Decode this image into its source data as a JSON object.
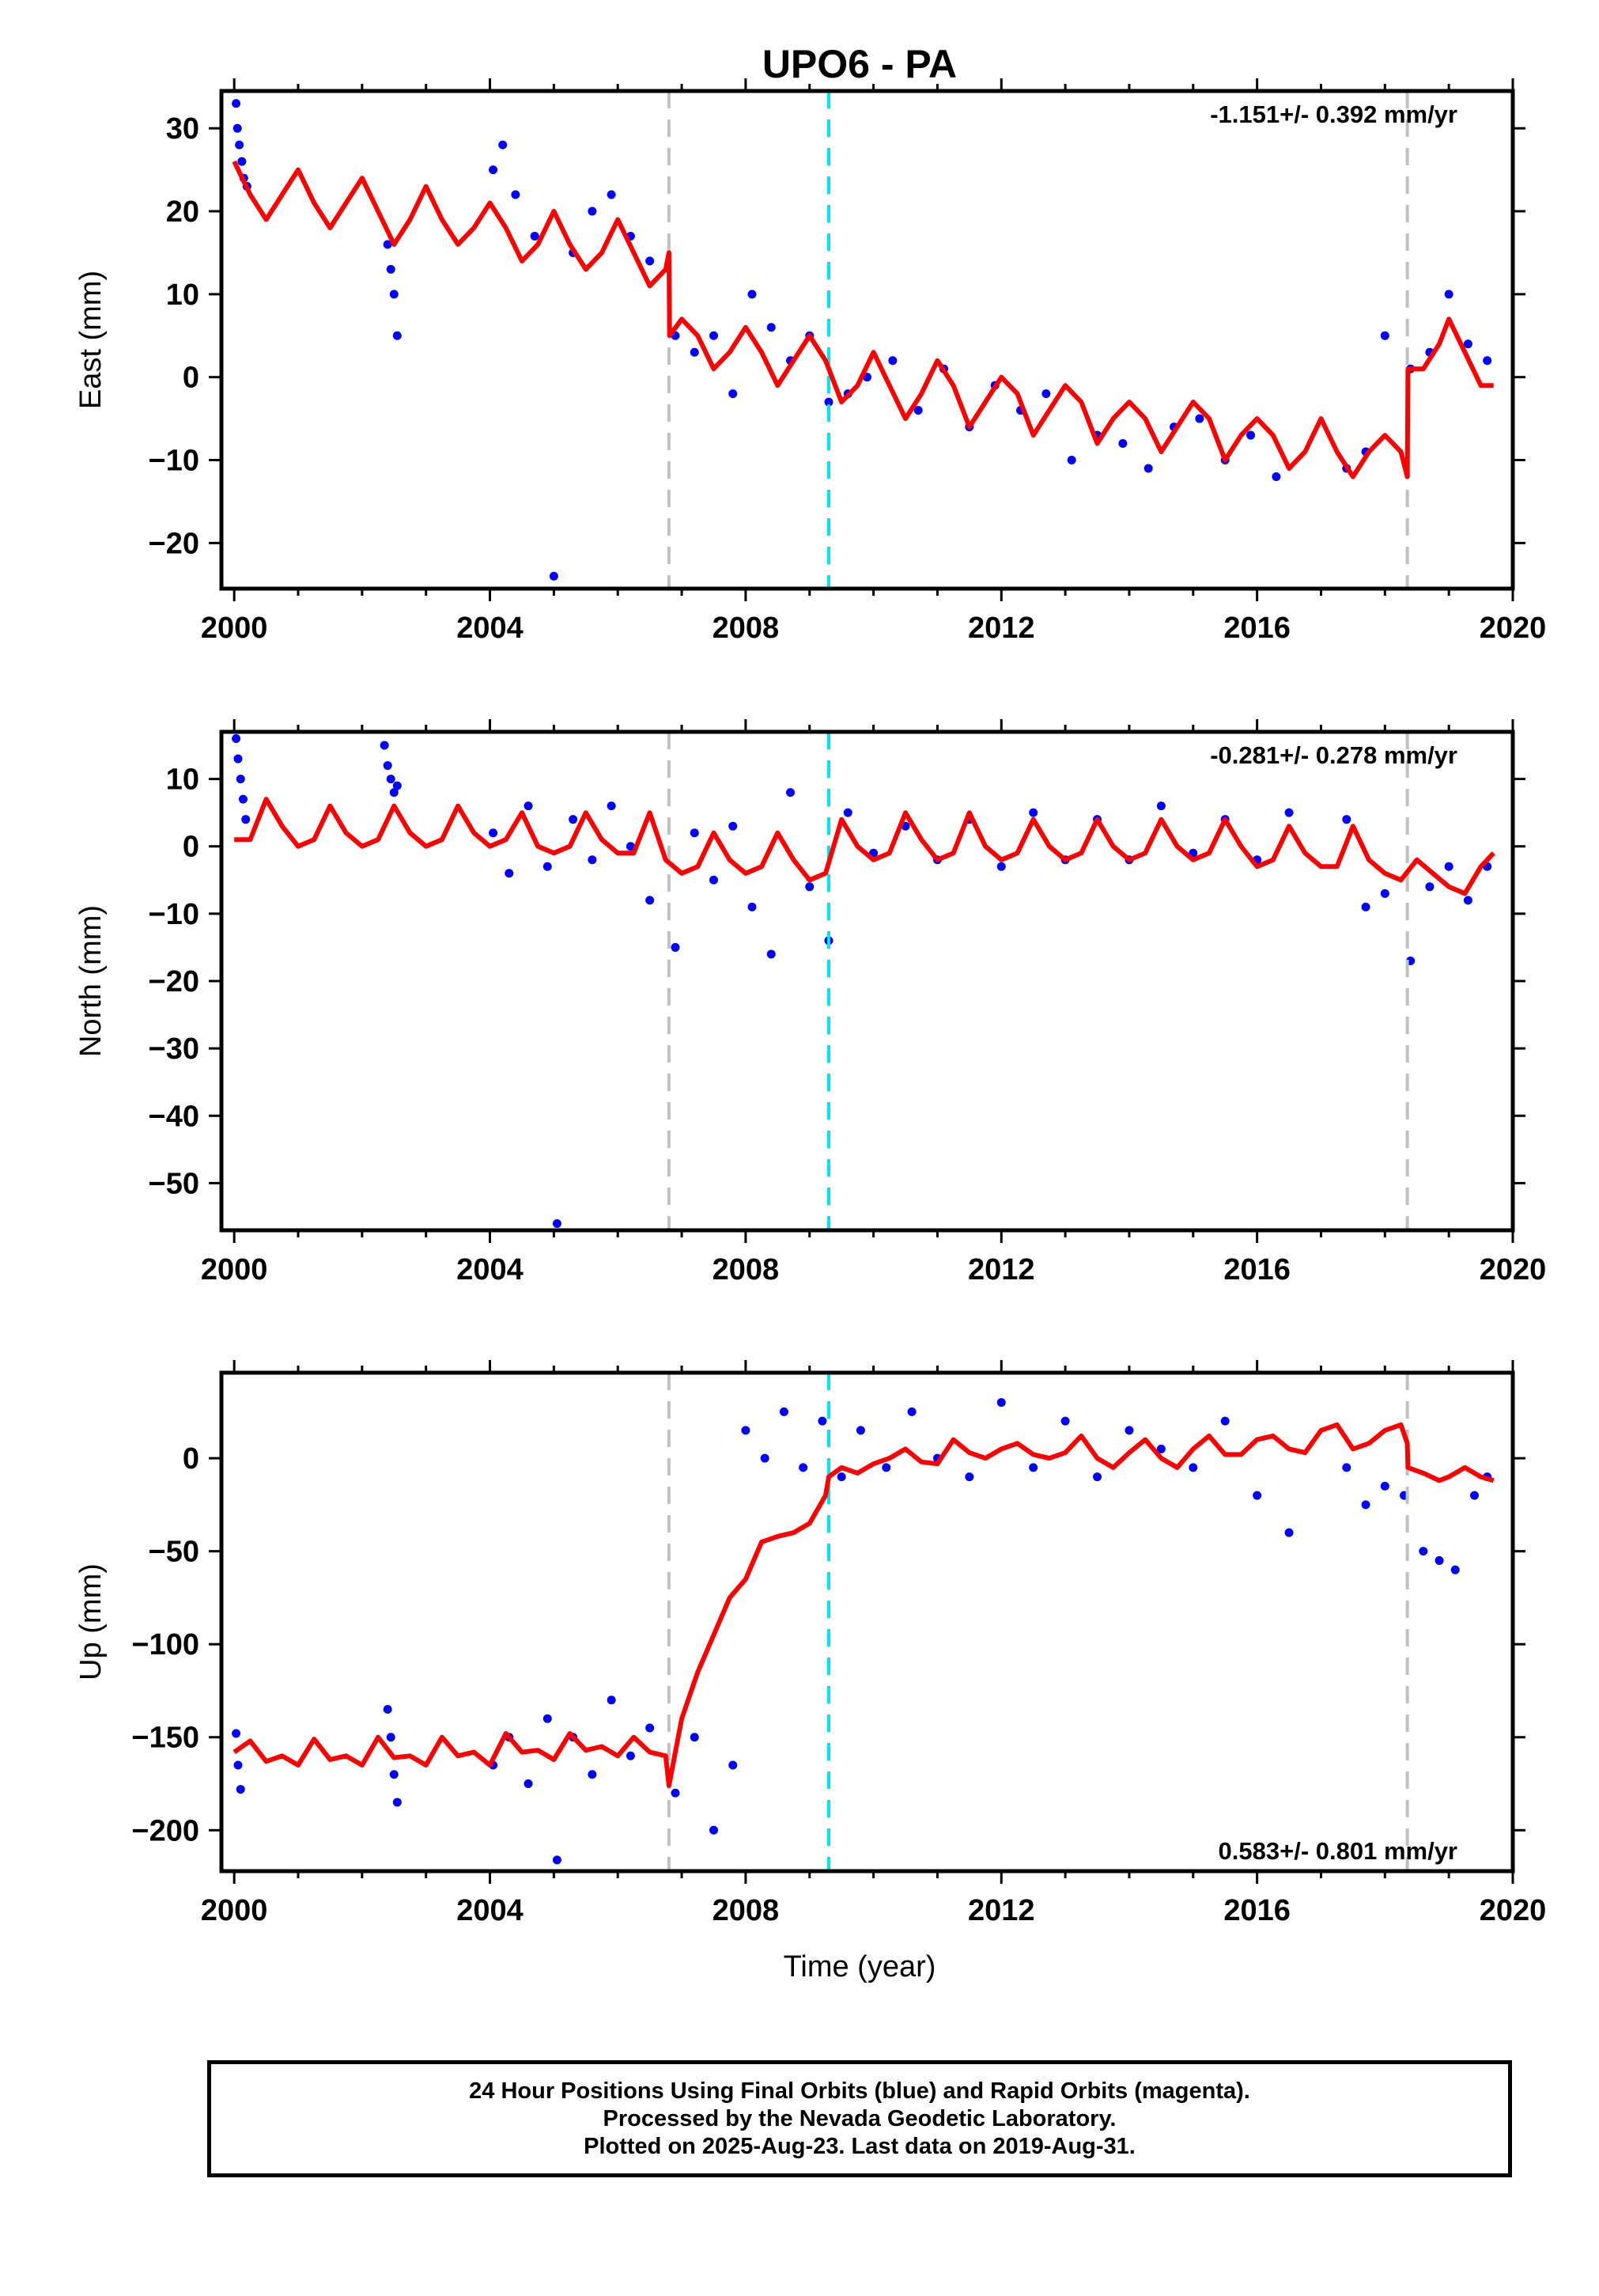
{
  "chart_data": {
    "type": "scatter",
    "title": "UPO6 - PA",
    "xlabel": "Time (year)",
    "xlim": [
      1999.8,
      2020.0
    ],
    "x_ticks": [
      "2000",
      "2004",
      "2008",
      "2012",
      "2016",
      "2020"
    ],
    "x_tick_values": [
      2000,
      2004,
      2008,
      2012,
      2016,
      2020
    ],
    "vertical_lines": [
      {
        "x": 2006.8,
        "color": "#c0c0c0",
        "style": "dashed"
      },
      {
        "x": 2009.3,
        "color": "#00e5f0",
        "style": "dashed"
      },
      {
        "x": 2018.35,
        "color": "#c0c0c0",
        "style": "dashed"
      }
    ],
    "colors": {
      "points": "#0000ff",
      "model": "#ff0000"
    },
    "panels": [
      {
        "ylabel": "East (mm)",
        "ylim": [
          -25.5,
          34.5
        ],
        "y_ticks": [
          "30",
          "20",
          "10",
          "0",
          "−10",
          "−20"
        ],
        "y_tick_values": [
          30,
          20,
          10,
          0,
          -10,
          -20
        ],
        "rate": "-1.151+/- 0.392 mm/yr",
        "rate_position": "top-right",
        "series": [
          {
            "kind": "points",
            "x": [
              2000.03,
              2000.05,
              2000.08,
              2000.12,
              2000.15,
              2000.2,
              2002.4,
              2002.45,
              2002.5,
              2002.55,
              2004.05,
              2004.2,
              2004.4,
              2004.7,
              2005.0,
              2005.3,
              2005.6,
              2005.9,
              2006.2,
              2006.5,
              2006.9,
              2007.2,
              2007.5,
              2007.8,
              2008.1,
              2008.4,
              2008.7,
              2009.0,
              2009.3,
              2009.6,
              2009.9,
              2010.3,
              2010.7,
              2011.1,
              2011.5,
              2011.9,
              2012.3,
              2012.7,
              2013.1,
              2013.5,
              2013.9,
              2014.3,
              2014.7,
              2015.1,
              2015.5,
              2015.9,
              2016.3,
              2017.4,
              2017.7,
              2018.0,
              2018.4,
              2018.7,
              2019.0,
              2019.3,
              2019.6
            ],
            "y": [
              33,
              30,
              28,
              26,
              24,
              23,
              16,
              13,
              10,
              5,
              25,
              28,
              22,
              17,
              -24,
              15,
              20,
              22,
              17,
              14,
              5,
              3,
              5,
              -2,
              10,
              6,
              2,
              5,
              -3,
              -2,
              0,
              2,
              -4,
              1,
              -6,
              -1,
              -4,
              -2,
              -10,
              -7,
              -8,
              -11,
              -6,
              -5,
              -10,
              -7,
              -12,
              -11,
              -9,
              5,
              1,
              3,
              10,
              4,
              2
            ]
          },
          {
            "kind": "model",
            "x": [
              2000.0,
              2000.25,
              2000.5,
              2000.75,
              2001.0,
              2001.25,
              2001.5,
              2001.75,
              2002.0,
              2002.25,
              2002.5,
              2002.75,
              2003.0,
              2003.25,
              2003.5,
              2003.75,
              2004.0,
              2004.25,
              2004.5,
              2004.75,
              2005.0,
              2005.25,
              2005.5,
              2005.75,
              2006.0,
              2006.25,
              2006.5,
              2006.75,
              2006.8,
              2006.81,
              2007.0,
              2007.25,
              2007.5,
              2007.75,
              2008.0,
              2008.25,
              2008.5,
              2008.75,
              2009.0,
              2009.25,
              2009.5,
              2009.75,
              2010.0,
              2010.25,
              2010.5,
              2010.75,
              2011.0,
              2011.25,
              2011.5,
              2011.75,
              2012.0,
              2012.25,
              2012.5,
              2012.75,
              2013.0,
              2013.25,
              2013.5,
              2013.75,
              2014.0,
              2014.25,
              2014.5,
              2014.75,
              2015.0,
              2015.25,
              2015.5,
              2015.75,
              2016.0,
              2016.25,
              2016.5,
              2016.75,
              2017.0,
              2017.25,
              2017.5,
              2017.75,
              2018.0,
              2018.25,
              2018.35,
              2018.36,
              2018.6,
              2018.85,
              2019.0,
              2019.25,
              2019.5,
              2019.7
            ],
            "y": [
              26,
              22,
              19,
              22,
              25,
              21,
              18,
              21,
              24,
              20,
              16,
              19,
              23,
              19,
              16,
              18,
              21,
              18,
              14,
              16,
              20,
              16,
              13,
              15,
              19,
              15,
              11,
              13,
              15,
              5,
              7,
              5,
              1,
              3,
              6,
              3,
              -1,
              2,
              5,
              2,
              -3,
              -1,
              3,
              -1,
              -5,
              -2,
              2,
              -1,
              -6,
              -3,
              0,
              -2,
              -7,
              -4,
              -1,
              -3,
              -8,
              -5,
              -3,
              -5,
              -9,
              -6,
              -3,
              -5,
              -10,
              -7,
              -5,
              -7,
              -11,
              -9,
              -5,
              -9,
              -12,
              -9,
              -7,
              -9,
              -12,
              1,
              1,
              4,
              7,
              3,
              -1,
              -1
            ]
          }
        ]
      },
      {
        "ylabel": "North (mm)",
        "ylim": [
          -57,
          17
        ],
        "y_ticks": [
          "10",
          "0",
          "−10",
          "−20",
          "−30",
          "−40",
          "−50"
        ],
        "y_tick_values": [
          10,
          0,
          -10,
          -20,
          -30,
          -40,
          -50
        ],
        "rate": "-0.281+/- 0.278 mm/yr",
        "rate_position": "top-right",
        "series": [
          {
            "kind": "points",
            "x": [
              2000.03,
              2000.06,
              2000.1,
              2000.14,
              2000.18,
              2002.35,
              2002.4,
              2002.45,
              2002.5,
              2002.55,
              2004.05,
              2004.3,
              2004.6,
              2004.9,
              2005.05,
              2005.3,
              2005.6,
              2005.9,
              2006.2,
              2006.5,
              2006.9,
              2007.2,
              2007.5,
              2007.8,
              2008.1,
              2008.4,
              2008.7,
              2009.0,
              2009.3,
              2009.6,
              2010.0,
              2010.5,
              2011.0,
              2011.5,
              2012.0,
              2012.5,
              2013.0,
              2013.5,
              2014.0,
              2014.5,
              2015.0,
              2015.5,
              2016.0,
              2016.5,
              2017.4,
              2017.7,
              2018.0,
              2018.4,
              2018.7,
              2019.0,
              2019.3,
              2019.6
            ],
            "y": [
              16,
              13,
              10,
              7,
              4,
              15,
              12,
              10,
              8,
              9,
              2,
              -4,
              6,
              -3,
              -56,
              4,
              -2,
              6,
              0,
              -8,
              -15,
              2,
              -5,
              3,
              -9,
              -16,
              8,
              -6,
              -14,
              5,
              -1,
              3,
              -2,
              4,
              -3,
              5,
              -2,
              4,
              -2,
              6,
              -1,
              4,
              -2,
              5,
              4,
              -9,
              -7,
              -17,
              -6,
              -3,
              -8,
              -3
            ]
          },
          {
            "kind": "model",
            "x": [
              2000.0,
              2000.25,
              2000.5,
              2000.75,
              2001.0,
              2001.25,
              2001.5,
              2001.75,
              2002.0,
              2002.25,
              2002.5,
              2002.75,
              2003.0,
              2003.25,
              2003.5,
              2003.75,
              2004.0,
              2004.25,
              2004.5,
              2004.75,
              2005.0,
              2005.25,
              2005.5,
              2005.75,
              2006.0,
              2006.25,
              2006.5,
              2006.75,
              2007.0,
              2007.25,
              2007.5,
              2007.75,
              2008.0,
              2008.25,
              2008.5,
              2008.75,
              2009.0,
              2009.25,
              2009.5,
              2009.75,
              2010.0,
              2010.25,
              2010.5,
              2010.75,
              2011.0,
              2011.25,
              2011.5,
              2011.75,
              2012.0,
              2012.25,
              2012.5,
              2012.75,
              2013.0,
              2013.25,
              2013.5,
              2013.75,
              2014.0,
              2014.25,
              2014.5,
              2014.75,
              2015.0,
              2015.25,
              2015.5,
              2015.75,
              2016.0,
              2016.25,
              2016.5,
              2016.75,
              2017.0,
              2017.25,
              2017.5,
              2017.75,
              2018.0,
              2018.25,
              2018.5,
              2018.75,
              2019.0,
              2019.25,
              2019.5,
              2019.7
            ],
            "y": [
              1,
              1,
              7,
              3,
              0,
              1,
              6,
              2,
              0,
              1,
              6,
              2,
              0,
              1,
              6,
              2,
              0,
              1,
              5,
              0,
              -1,
              0,
              5,
              1,
              -1,
              -1,
              5,
              -2,
              -4,
              -3,
              2,
              -2,
              -4,
              -3,
              2,
              -2,
              -5,
              -4,
              4,
              0,
              -2,
              -1,
              5,
              1,
              -2,
              -1,
              5,
              0,
              -2,
              -1,
              4,
              0,
              -2,
              -1,
              4,
              0,
              -2,
              -1,
              4,
              0,
              -2,
              -1,
              4,
              0,
              -3,
              -2,
              3,
              -1,
              -3,
              -3,
              3,
              -2,
              -4,
              -5,
              -2,
              -4,
              -6,
              -7,
              -3,
              -1
            ]
          }
        ]
      },
      {
        "ylabel": "Up (mm)",
        "ylim": [
          -222,
          46
        ],
        "y_ticks": [
          "0",
          "−50",
          "−100",
          "−150",
          "−200"
        ],
        "y_tick_values": [
          0,
          -50,
          -100,
          -150,
          -200
        ],
        "rate": "0.583+/- 0.801 mm/yr",
        "rate_position": "bottom-right",
        "series": [
          {
            "kind": "points",
            "x": [
              2000.03,
              2000.06,
              2000.1,
              2002.4,
              2002.45,
              2002.5,
              2002.55,
              2004.05,
              2004.3,
              2004.6,
              2004.9,
              2005.05,
              2005.3,
              2005.6,
              2005.9,
              2006.2,
              2006.5,
              2006.9,
              2007.2,
              2007.5,
              2007.8,
              2008.0,
              2008.3,
              2008.6,
              2008.9,
              2009.2,
              2009.5,
              2009.8,
              2010.2,
              2010.6,
              2011.0,
              2011.5,
              2012.0,
              2012.5,
              2013.0,
              2013.5,
              2014.0,
              2014.5,
              2015.0,
              2015.5,
              2016.0,
              2016.5,
              2017.4,
              2017.7,
              2018.0,
              2018.3,
              2018.6,
              2018.85,
              2019.1,
              2019.4,
              2019.6
            ],
            "y": [
              -148,
              -165,
              -178,
              -135,
              -150,
              -170,
              -185,
              -165,
              -150,
              -175,
              -140,
              -216,
              -150,
              -170,
              -130,
              -160,
              -145,
              -180,
              -150,
              -200,
              -165,
              15,
              0,
              25,
              -5,
              20,
              -10,
              15,
              -5,
              25,
              0,
              -10,
              30,
              -5,
              20,
              -10,
              15,
              5,
              -5,
              20,
              -20,
              -40,
              -5,
              -25,
              -15,
              -20,
              -50,
              -55,
              -60,
              -20,
              -10
            ]
          },
          {
            "kind": "model",
            "x": [
              2000.0,
              2000.25,
              2000.5,
              2000.75,
              2001.0,
              2001.25,
              2001.5,
              2001.75,
              2002.0,
              2002.25,
              2002.5,
              2002.75,
              2003.0,
              2003.25,
              2003.5,
              2003.75,
              2004.0,
              2004.25,
              2004.5,
              2004.75,
              2005.0,
              2005.25,
              2005.5,
              2005.75,
              2006.0,
              2006.25,
              2006.5,
              2006.75,
              2006.8,
              2007.0,
              2007.25,
              2007.5,
              2007.75,
              2008.0,
              2008.25,
              2008.5,
              2008.75,
              2009.0,
              2009.25,
              2009.3,
              2009.5,
              2009.75,
              2010.0,
              2010.25,
              2010.5,
              2010.75,
              2011.0,
              2011.25,
              2011.5,
              2011.75,
              2012.0,
              2012.25,
              2012.5,
              2012.75,
              2013.0,
              2013.25,
              2013.5,
              2013.75,
              2014.0,
              2014.25,
              2014.5,
              2014.75,
              2015.0,
              2015.25,
              2015.5,
              2015.75,
              2016.0,
              2016.25,
              2016.5,
              2016.75,
              2017.0,
              2017.25,
              2017.5,
              2017.75,
              2018.0,
              2018.25,
              2018.35,
              2018.36,
              2018.6,
              2018.85,
              2019.0,
              2019.25,
              2019.5,
              2019.7
            ],
            "y": [
              -158,
              -152,
              -163,
              -160,
              -165,
              -151,
              -162,
              -160,
              -165,
              -150,
              -161,
              -160,
              -165,
              -150,
              -160,
              -158,
              -165,
              -148,
              -158,
              -157,
              -162,
              -148,
              -157,
              -155,
              -160,
              -150,
              -158,
              -160,
              -176,
              -140,
              -115,
              -95,
              -75,
              -65,
              -45,
              -42,
              -40,
              -35,
              -20,
              -10,
              -5,
              -8,
              -3,
              0,
              5,
              -2,
              -3,
              10,
              3,
              0,
              5,
              8,
              2,
              0,
              3,
              12,
              0,
              -5,
              3,
              10,
              0,
              -5,
              5,
              12,
              2,
              2,
              10,
              12,
              5,
              3,
              15,
              18,
              5,
              8,
              15,
              18,
              8,
              -5,
              -8,
              -12,
              -10,
              -5,
              -10,
              -12
            ]
          }
        ]
      }
    ],
    "caption": [
      "24 Hour Positions Using Final Orbits (blue) and Rapid Orbits (magenta).",
      "Processed by the Nevada Geodetic Laboratory.",
      "Plotted on 2025-Aug-23. Last data on 2019-Aug-31."
    ]
  }
}
